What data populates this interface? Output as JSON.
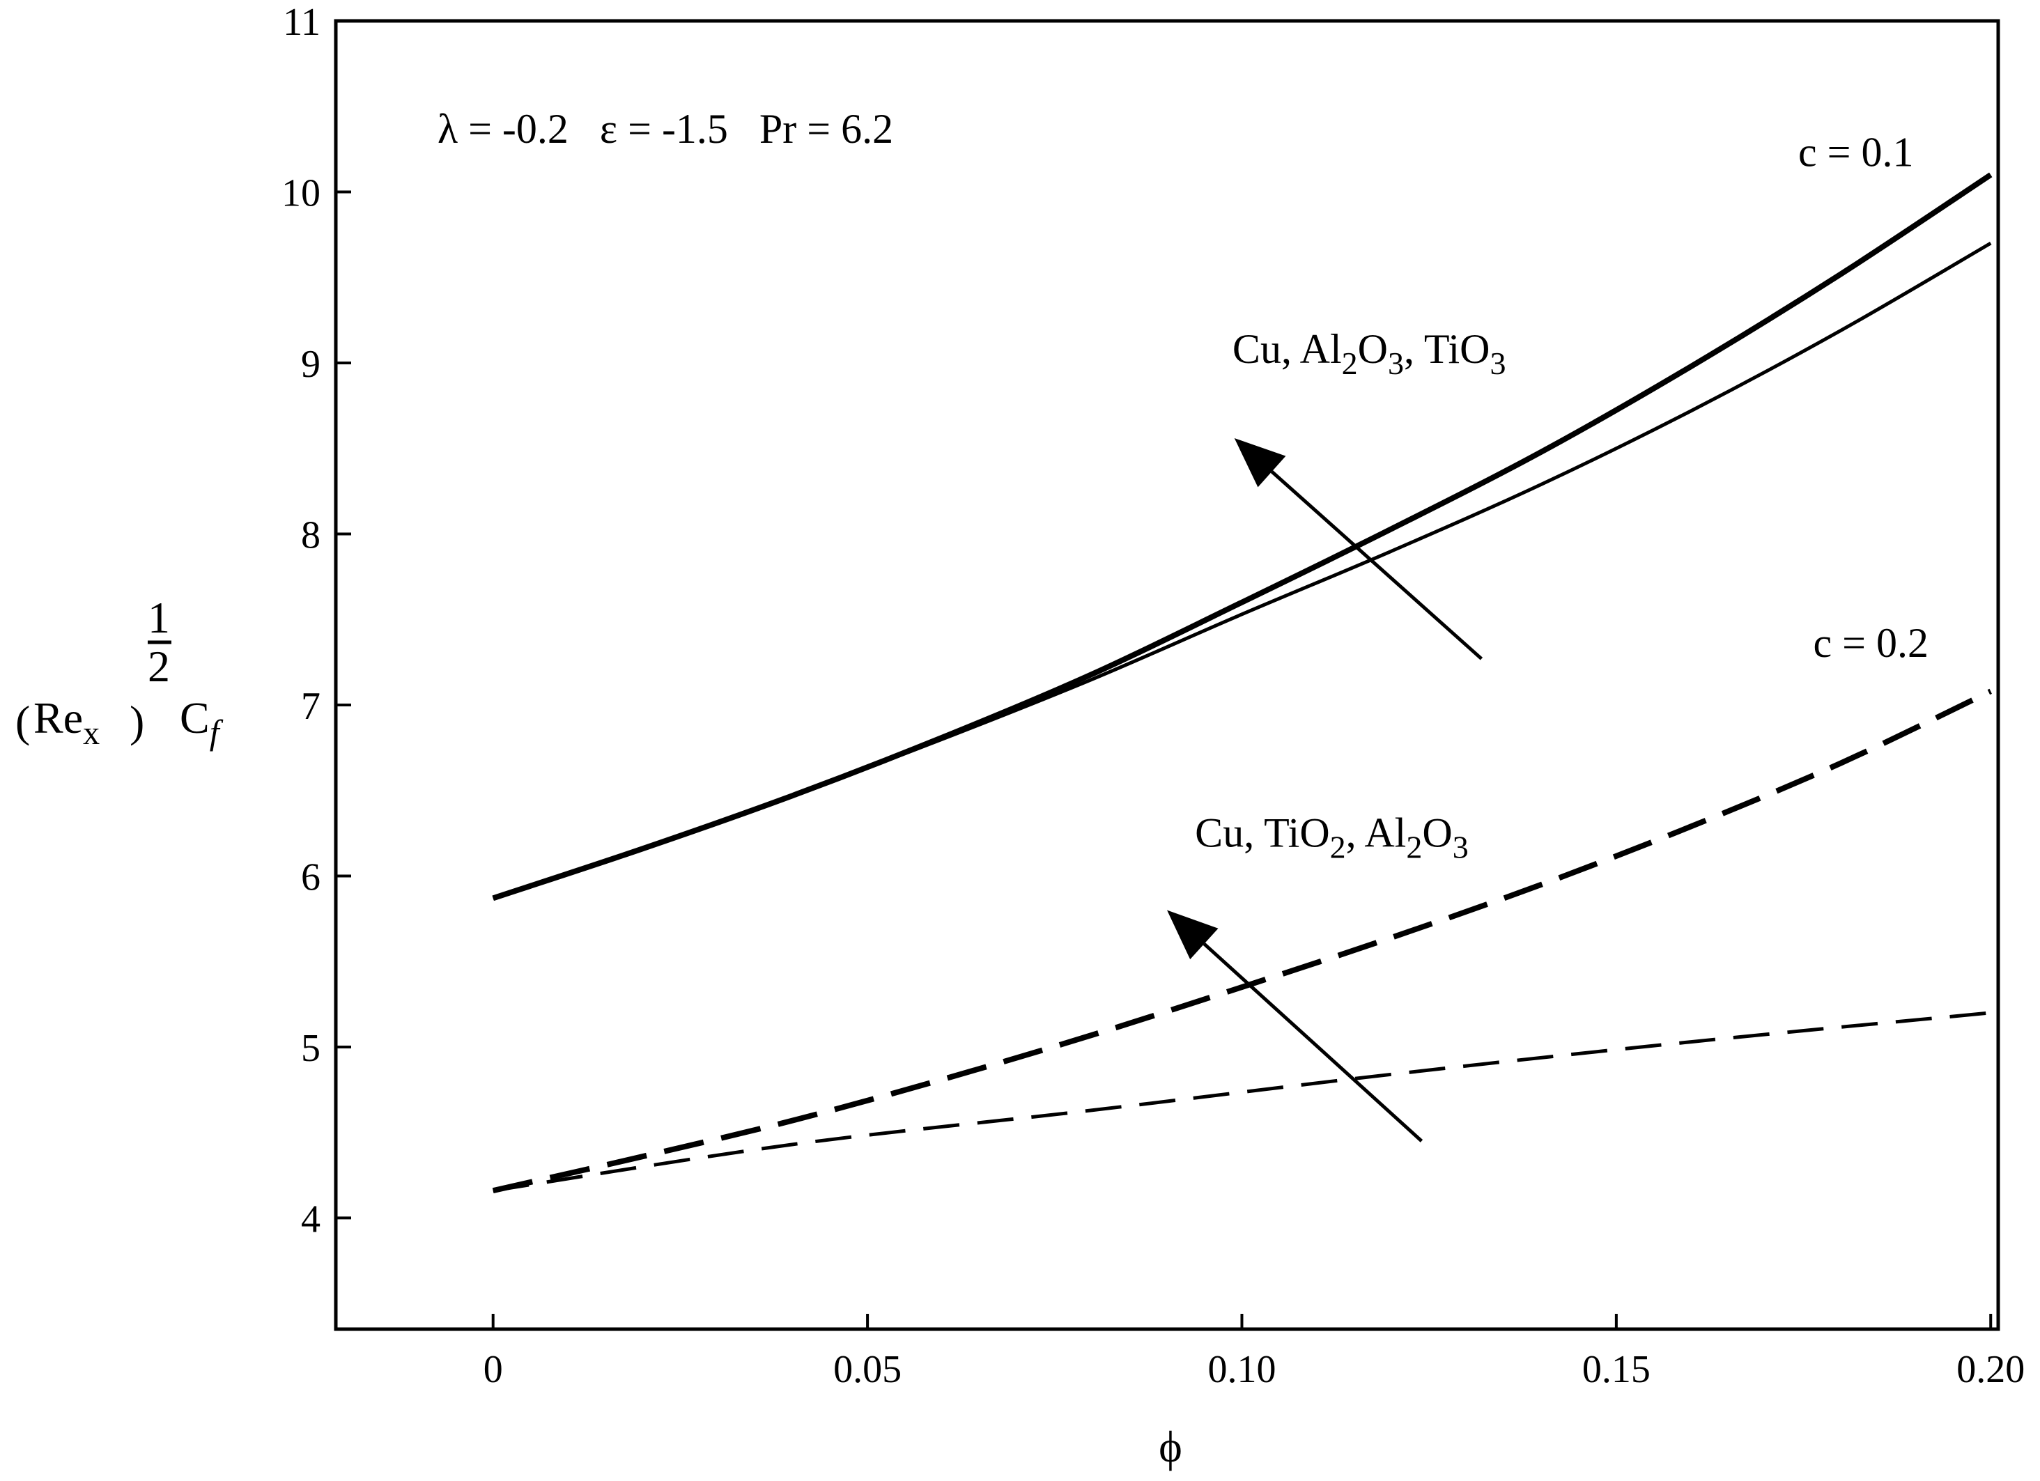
{
  "chart_data": {
    "type": "line",
    "title": "",
    "xlabel": "ϕ",
    "ylabel": {
      "prefix": "(Re",
      "sub": "x",
      "suffix": ")",
      "exp_num": "1",
      "exp_den": "2",
      "main": "C",
      "main_sub": "f"
    },
    "xlim": [
      -0.021,
      0.201
    ],
    "ylim": [
      3.35,
      11.0
    ],
    "xticks": [
      {
        "value": 0,
        "label": "0"
      },
      {
        "value": 0.05,
        "label": "0.05"
      },
      {
        "value": 0.1,
        "label": "0.10"
      },
      {
        "value": 0.15,
        "label": "0.15"
      },
      {
        "value": 0.2,
        "label": "0.20"
      }
    ],
    "yticks": [
      {
        "value": 4,
        "label": "4"
      },
      {
        "value": 5,
        "label": "5"
      },
      {
        "value": 6,
        "label": "6"
      },
      {
        "value": 7,
        "label": "7"
      },
      {
        "value": 8,
        "label": "8"
      },
      {
        "value": 9,
        "label": "9"
      },
      {
        "value": 10,
        "label": "10"
      },
      {
        "value": 11,
        "label": "11"
      }
    ],
    "params_label": "λ = -0.2   ε = -1.5   Pr = 6.2",
    "series": [
      {
        "name": "c = 0.1 upper",
        "style": "solid",
        "width": "thick",
        "x": [
          0,
          0.02,
          0.04,
          0.06,
          0.08,
          0.1,
          0.12,
          0.14,
          0.16,
          0.18,
          0.2
        ],
        "y": [
          5.87,
          6.16,
          6.47,
          6.81,
          7.18,
          7.6,
          8.03,
          8.48,
          8.98,
          9.52,
          10.1
        ]
      },
      {
        "name": "c = 0.1 lower",
        "style": "solid",
        "width": "thin",
        "x": [
          0,
          0.02,
          0.04,
          0.06,
          0.08,
          0.1,
          0.12,
          0.14,
          0.16,
          0.18,
          0.2
        ],
        "y": [
          5.87,
          6.16,
          6.47,
          6.8,
          7.15,
          7.53,
          7.9,
          8.29,
          8.72,
          9.19,
          9.7
        ]
      },
      {
        "name": "c = 0.2 upper",
        "style": "dashed",
        "width": "thick",
        "x": [
          0,
          0.02,
          0.04,
          0.06,
          0.08,
          0.1,
          0.12,
          0.14,
          0.16,
          0.18,
          0.2
        ],
        "y": [
          4.16,
          4.36,
          4.57,
          4.81,
          5.07,
          5.35,
          5.64,
          5.95,
          6.29,
          6.66,
          7.08
        ]
      },
      {
        "name": "c = 0.2 lower",
        "style": "dashed",
        "width": "thin",
        "x": [
          0,
          0.04,
          0.08,
          0.12,
          0.16,
          0.2
        ],
        "y": [
          4.16,
          4.43,
          4.63,
          4.84,
          5.03,
          5.2
        ]
      }
    ],
    "annotations": [
      {
        "id": "c01",
        "text": "c = 0.1",
        "x": 0.182,
        "y": 10.15
      },
      {
        "id": "c02",
        "text": "c = 0.2",
        "x": 0.184,
        "y": 7.28
      }
    ],
    "arrows": [
      {
        "id": "arrow-upper",
        "from": [
          0.132,
          7.27
        ],
        "to": [
          0.099,
          8.56
        ]
      },
      {
        "id": "arrow-lower",
        "from": [
          0.124,
          4.45
        ],
        "to": [
          0.09,
          5.8
        ]
      }
    ],
    "arrow_labels": [
      {
        "id": "upper",
        "x": 0.117,
        "y": 9.0,
        "parts": [
          {
            "t": "Cu, Al"
          },
          {
            "t": "2",
            "sub": true
          },
          {
            "t": "O"
          },
          {
            "t": "3",
            "sub": true
          },
          {
            "t": ", TiO"
          },
          {
            "t": "3",
            "sub": true
          }
        ]
      },
      {
        "id": "lower",
        "x": 0.112,
        "y": 6.17,
        "parts": [
          {
            "t": "Cu, TiO"
          },
          {
            "t": "2",
            "sub": true
          },
          {
            "t": ", Al"
          },
          {
            "t": "2",
            "sub": true
          },
          {
            "t": "O"
          },
          {
            "t": "3",
            "sub": true
          }
        ]
      }
    ]
  }
}
